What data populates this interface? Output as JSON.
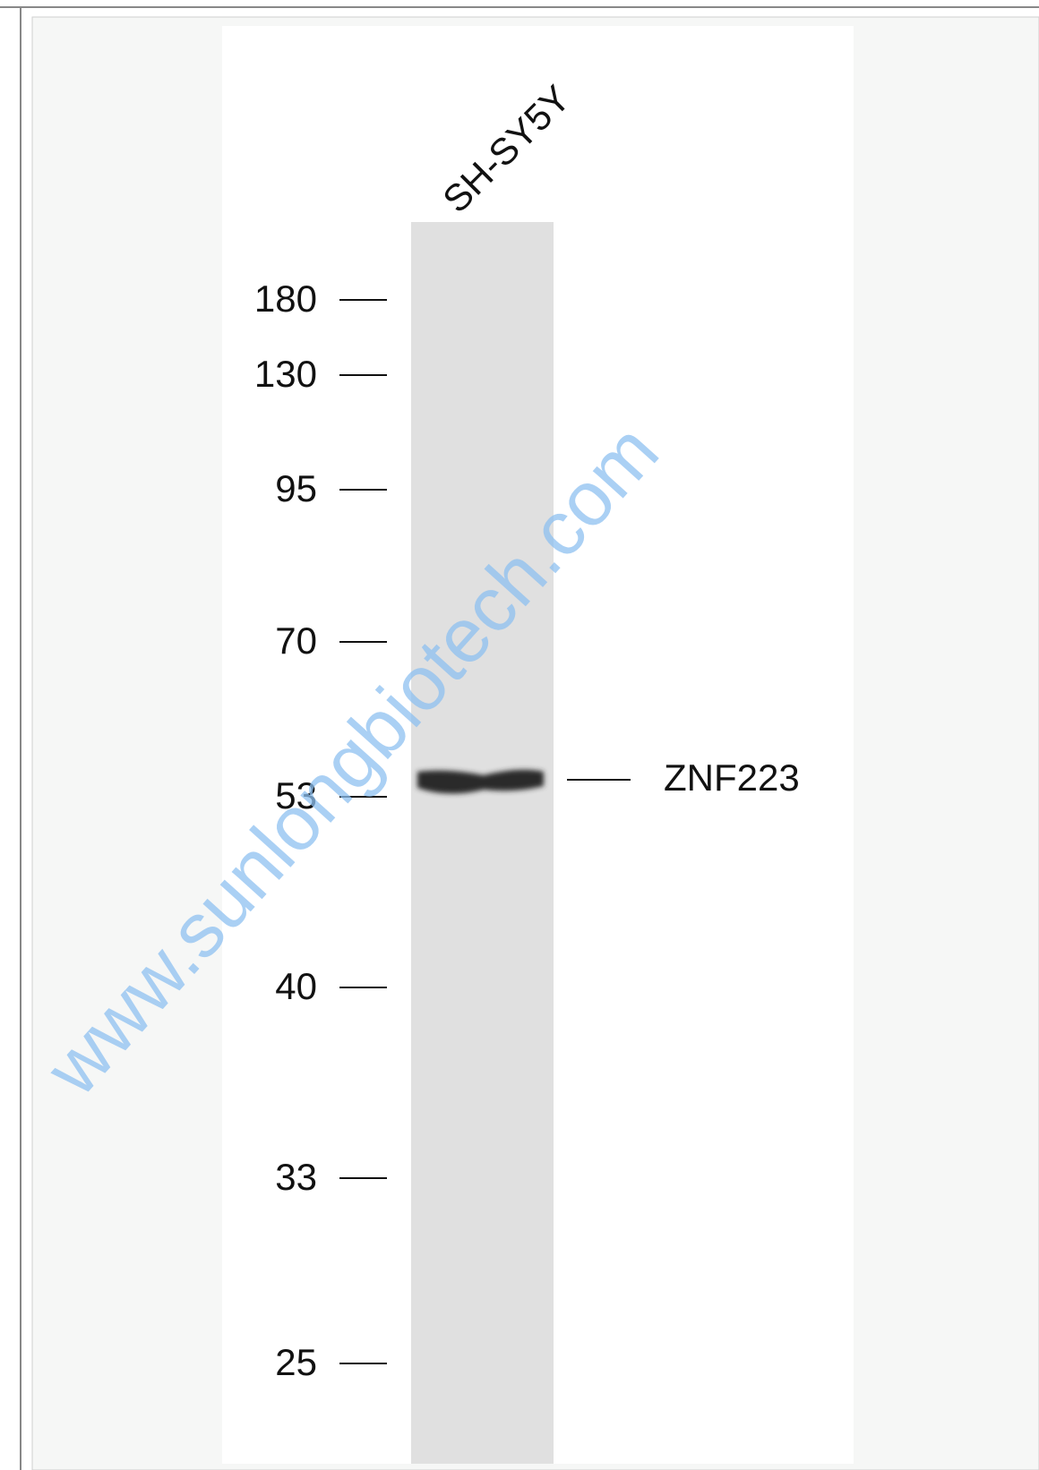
{
  "lane_label": "SH-SY5Y",
  "markers": [
    "180",
    "130",
    "95",
    "70",
    "53",
    "40",
    "33",
    "25"
  ],
  "band_label": "ZNF223",
  "watermark": "www.sunlongbiotech.com"
}
